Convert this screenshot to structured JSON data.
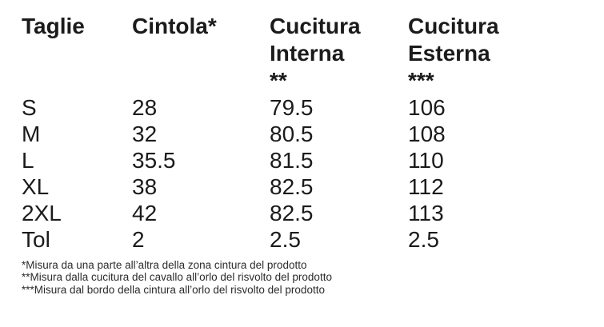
{
  "table": {
    "headers": [
      {
        "line1": "Taglie",
        "line2": "",
        "line3": ""
      },
      {
        "line1": "Cintola*",
        "line2": "",
        "line3": ""
      },
      {
        "line1": "Cucitura",
        "line2": "Interna",
        "line3": "**"
      },
      {
        "line1": "Cucitura",
        "line2": "Esterna",
        "line3": "***"
      }
    ],
    "rows": [
      [
        "S",
        "28",
        "79.5",
        "106"
      ],
      [
        "M",
        "32",
        "80.5",
        "108"
      ],
      [
        "L",
        "35.5",
        "81.5",
        "110"
      ],
      [
        "XL",
        "38",
        "82.5",
        "112"
      ],
      [
        "2XL",
        "42",
        "82.5",
        "113"
      ],
      [
        "Tol",
        "2",
        "2.5",
        "2.5"
      ]
    ]
  },
  "footnotes": [
    "*Misura da una parte all’altra della zona cintura del prodotto",
    "**Misura dalla cucitura del cavallo all’orlo del risvolto del prodotto",
    "***Misura dal bordo della cintura all’orlo del risvolto del prodotto"
  ],
  "colors": {
    "background": "#ffffff",
    "text": "#1b1b1b",
    "footnote_text": "#2b2b2b"
  }
}
